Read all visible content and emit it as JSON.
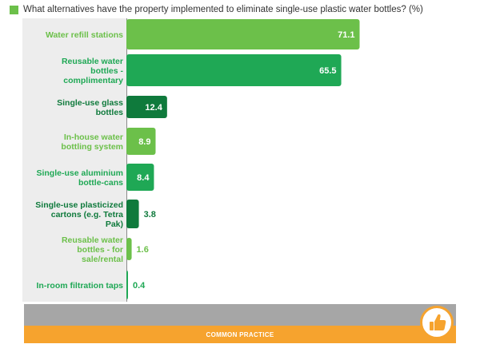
{
  "chart_data": {
    "type": "bar",
    "orientation": "horizontal",
    "title": "What alternatives have the property implemented to eliminate single-use plastic water bottles? (%)",
    "categories": [
      [
        "Water refill stations"
      ],
      [
        "Reusable water",
        "bottles -",
        "complimentary"
      ],
      [
        "Single-use glass",
        "bottles"
      ],
      [
        "In-house water",
        "bottling system"
      ],
      [
        "Single-use aluminium",
        "bottle-cans"
      ],
      [
        "Single-use plasticized",
        "cartons (e.g. Tetra",
        "Pak)"
      ],
      [
        "Reusable water",
        "bottles - for",
        "sale/rental"
      ],
      [
        "In-room filtration taps"
      ]
    ],
    "values": [
      71.1,
      65.5,
      12.4,
      8.9,
      8.4,
      3.8,
      1.6,
      0.4
    ],
    "value_labels": [
      "71.1",
      "65.5",
      "12.4",
      "8.9",
      "8.4",
      "3.8",
      "1.6",
      "0.4"
    ],
    "bar_colors": [
      "#6cc04a",
      "#1fa855",
      "#0f7a3c",
      "#6cc04a",
      "#1fa855",
      "#0f7a3c",
      "#6cc04a",
      "#1fa855"
    ],
    "label_colors": [
      "#6cc04a",
      "#1fa855",
      "#0f7a3c",
      "#6cc04a",
      "#1fa855",
      "#0f7a3c",
      "#6cc04a",
      "#1fa855"
    ],
    "xlim": [
      0,
      100
    ],
    "legend": {
      "color": "#6cc04a"
    }
  },
  "footer": {
    "label": "COMMON PRACTICE",
    "icon": "thumbs-up-icon",
    "colors": {
      "band": "#f6a32e",
      "grey": "#a6a6a6"
    }
  }
}
